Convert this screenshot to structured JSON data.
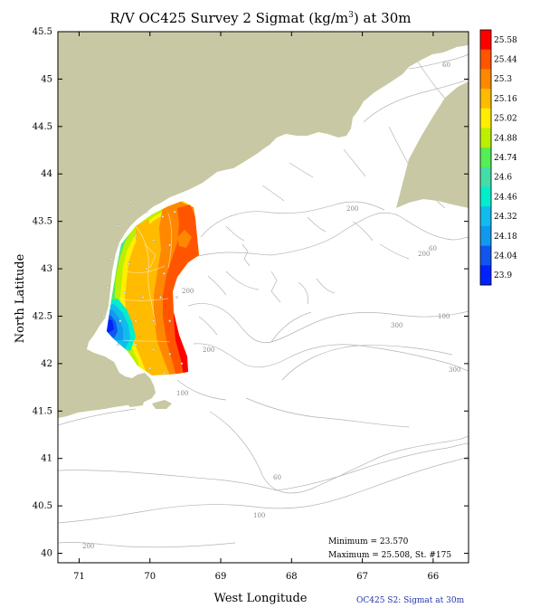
{
  "title": {
    "prefix": "R/V OC425 Survey 2 Sigmat (kg/m",
    "superscript": "3",
    "suffix": ") at 30m"
  },
  "axes": {
    "x_label": "West Longitude",
    "y_label": "North Latitude",
    "x_ticks": [
      "71",
      "70",
      "69",
      "68",
      "67",
      "66"
    ],
    "y_ticks": [
      "45.5",
      "45",
      "44.5",
      "44",
      "43.5",
      "43",
      "42.5",
      "42",
      "41.5",
      "41",
      "40.5",
      "40"
    ],
    "lon_range": [
      71.3,
      65.5
    ],
    "lat_range": [
      39.9,
      45.5
    ]
  },
  "colors": {
    "land": "#c8c8a4",
    "water": "#ffffff",
    "bathymetry": "#b4b4b4",
    "frame": "#000000"
  },
  "legend": {
    "labels": [
      "25.58",
      "25.44",
      "25.3",
      "25.16",
      "25.02",
      "24.88",
      "24.74",
      "24.6",
      "24.46",
      "24.32",
      "24.18",
      "24.04",
      "23.9"
    ],
    "colors": [
      "#ff0000",
      "#ff5500",
      "#ff8800",
      "#ffbb00",
      "#ffee00",
      "#bbf000",
      "#55ee55",
      "#44ddaa",
      "#00eecc",
      "#11bbee",
      "#1199ee",
      "#1155ee",
      "#0022ff"
    ]
  },
  "contour_labels": [
    "60",
    "60",
    "200",
    "200",
    "200",
    "200",
    "100",
    "300",
    "100",
    "300",
    "60",
    "100",
    "200"
  ],
  "stats": {
    "minimum": "Minimum = 23.570",
    "maximum": "Maximum = 25.508, St. #175"
  },
  "footer": "OC425 S2: Sigmat at 30m",
  "chart_data": {
    "type": "heatmap",
    "variable": "Sigmat (kg/m3) at 30m",
    "minimum": 23.57,
    "maximum": 25.508,
    "maximum_station": "175",
    "colorbar_levels": [
      23.9,
      24.04,
      24.18,
      24.32,
      24.46,
      24.6,
      24.74,
      24.88,
      25.02,
      25.16,
      25.3,
      25.44,
      25.58
    ],
    "xlabel": "West Longitude",
    "ylabel": "North Latitude",
    "xlim": [
      71.3,
      65.5
    ],
    "ylim": [
      39.9,
      45.5
    ],
    "stations": [
      {
        "lon": 70.27,
        "lat": 43.7,
        "value": 24.6
      },
      {
        "lon": 70.05,
        "lat": 43.6,
        "value": 24.9
      },
      {
        "lon": 69.82,
        "lat": 43.55,
        "value": 25.1
      },
      {
        "lon": 69.65,
        "lat": 43.6,
        "value": 25.2
      },
      {
        "lon": 70.45,
        "lat": 43.45,
        "value": 24.7
      },
      {
        "lon": 70.2,
        "lat": 43.35,
        "value": 25.0
      },
      {
        "lon": 69.95,
        "lat": 43.3,
        "value": 25.2
      },
      {
        "lon": 69.72,
        "lat": 43.25,
        "value": 25.3
      },
      {
        "lon": 70.55,
        "lat": 43.1,
        "value": 24.9
      },
      {
        "lon": 70.3,
        "lat": 43.05,
        "value": 25.1
      },
      {
        "lon": 70.05,
        "lat": 43.0,
        "value": 25.2
      },
      {
        "lon": 69.8,
        "lat": 42.95,
        "value": 25.3
      },
      {
        "lon": 70.6,
        "lat": 42.8,
        "value": 24.9
      },
      {
        "lon": 70.35,
        "lat": 42.75,
        "value": 25.0
      },
      {
        "lon": 70.1,
        "lat": 42.7,
        "value": 25.2
      },
      {
        "lon": 69.85,
        "lat": 42.7,
        "value": 25.3
      },
      {
        "lon": 69.62,
        "lat": 42.7,
        "value": 25.5
      },
      {
        "lon": 70.65,
        "lat": 42.5,
        "value": 23.9
      },
      {
        "lon": 70.42,
        "lat": 42.45,
        "value": 24.9
      },
      {
        "lon": 70.2,
        "lat": 42.45,
        "value": 25.1
      },
      {
        "lon": 69.95,
        "lat": 42.45,
        "value": 25.2
      },
      {
        "lon": 69.72,
        "lat": 42.45,
        "value": 25.4
      },
      {
        "lon": 70.45,
        "lat": 42.2,
        "value": 24.8
      },
      {
        "lon": 70.2,
        "lat": 42.2,
        "value": 25.1
      },
      {
        "lon": 69.95,
        "lat": 42.15,
        "value": 25.3
      },
      {
        "lon": 69.72,
        "lat": 42.1,
        "value": 25.4
      },
      {
        "lon": 69.55,
        "lat": 42.0,
        "value": 25.5
      },
      {
        "lon": 70.0,
        "lat": 41.95,
        "value": 25.2
      },
      {
        "lon": 69.8,
        "lat": 41.9,
        "value": 25.3
      }
    ]
  }
}
